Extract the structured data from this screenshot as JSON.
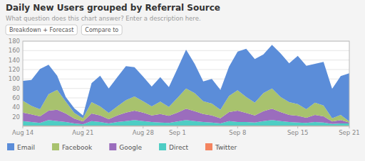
{
  "chart_data": {
    "type": "area",
    "title": "Daily New Users grouped by Referral Source",
    "subtitle": "What question does this chart answer? Enter a description here.",
    "annotations": [
      "Breakdown + Forecast",
      "Compare to"
    ],
    "categories": [
      "Aug 14",
      null,
      null,
      null,
      null,
      null,
      null,
      "Aug 21",
      null,
      null,
      null,
      null,
      null,
      null,
      "Aug 28",
      null,
      null,
      null,
      "Sep 1",
      null,
      null,
      null,
      null,
      null,
      null,
      "Sep 8",
      null,
      null,
      null,
      null,
      null,
      null,
      "Sep 15",
      null,
      null,
      null,
      null,
      null,
      "Sep 21"
    ],
    "series": [
      {
        "name": "Twitter",
        "color": "#f4845f",
        "values": [
          1,
          1,
          1,
          1,
          1,
          1,
          1,
          1,
          1,
          1,
          1,
          1,
          1,
          1,
          1,
          1,
          1,
          1,
          1,
          1,
          1,
          1,
          1,
          1,
          1,
          1,
          1,
          1,
          1,
          1,
          1,
          1,
          1,
          1,
          1,
          1,
          1,
          1,
          1
        ]
      },
      {
        "name": "Direct",
        "color": "#4ecdc4",
        "values": [
          10,
          8,
          6,
          12,
          10,
          8,
          5,
          3,
          10,
          8,
          5,
          8,
          10,
          12,
          10,
          8,
          7,
          6,
          9,
          12,
          10,
          8,
          7,
          5,
          10,
          8,
          8,
          7,
          10,
          12,
          10,
          8,
          7,
          6,
          8,
          7,
          4,
          5,
          5
        ]
      },
      {
        "name": "Google",
        "color": "#9b6dbd",
        "values": [
          18,
          16,
          14,
          20,
          24,
          18,
          10,
          6,
          16,
          14,
          9,
          14,
          18,
          20,
          18,
          14,
          18,
          15,
          19,
          24,
          21,
          17,
          15,
          11,
          19,
          24,
          19,
          15,
          21,
          24,
          19,
          15,
          14,
          11,
          15,
          13,
          5,
          7,
          2
        ]
      },
      {
        "name": "Facebook",
        "color": "#a8c26e",
        "values": [
          25,
          18,
          15,
          35,
          42,
          25,
          12,
          7,
          24,
          19,
          13,
          19,
          26,
          30,
          24,
          19,
          26,
          19,
          31,
          43,
          38,
          27,
          25,
          18,
          34,
          43,
          34,
          27,
          38,
          43,
          32,
          27,
          25,
          18,
          26,
          23,
          7,
          11,
          2
        ]
      },
      {
        "name": "Email",
        "color": "#5b8dd9",
        "values": [
          42,
          55,
          85,
          62,
          30,
          10,
          10,
          6,
          40,
          65,
          52,
          62,
          72,
          62,
          52,
          42,
          52,
          42,
          62,
          82,
          62,
          42,
          52,
          42,
          62,
          82,
          102,
          92,
          82,
          92,
          92,
          82,
          102,
          92,
          82,
          92,
          62,
          82,
          102
        ]
      }
    ],
    "stacked": true,
    "ylim": [
      0,
      180
    ],
    "yticks": [
      20,
      40,
      60,
      80,
      100,
      120,
      140,
      160,
      180
    ],
    "grid": true,
    "legend": "bottom"
  }
}
